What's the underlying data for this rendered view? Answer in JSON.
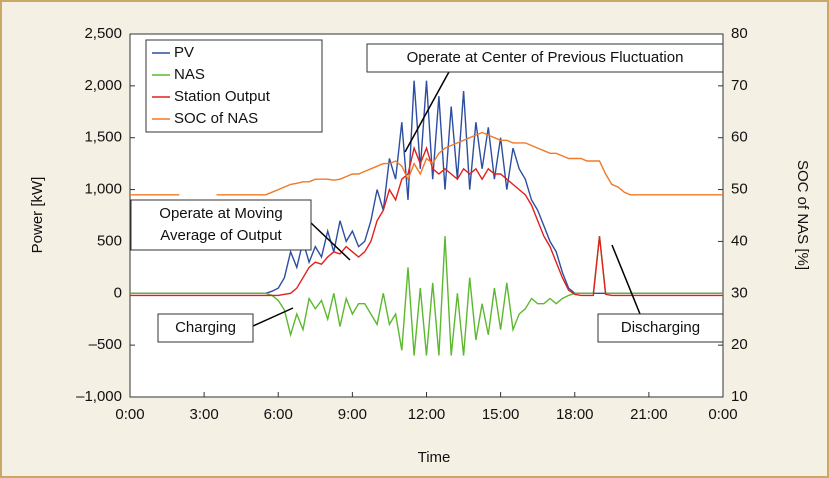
{
  "chart_data": {
    "type": "line",
    "xlabel": "Time",
    "ylabel": "Power [kW]",
    "y2label": "SOC of NAS [%]",
    "xlim": [
      0,
      24
    ],
    "xticks": [
      {
        "value": 0,
        "label": "0:00"
      },
      {
        "value": 3,
        "label": "3:00"
      },
      {
        "value": 6,
        "label": "6:00"
      },
      {
        "value": 9,
        "label": "9:00"
      },
      {
        "value": 12,
        "label": "12:00"
      },
      {
        "value": 15,
        "label": "15:00"
      },
      {
        "value": 18,
        "label": "18:00"
      },
      {
        "value": 21,
        "label": "21:00"
      },
      {
        "value": 24,
        "label": "0:00"
      }
    ],
    "ylim": [
      -1000,
      2500
    ],
    "yticks": [
      {
        "value": -1000,
        "label": "–1,000"
      },
      {
        "value": -500,
        "label": "–500"
      },
      0,
      500,
      {
        "value": 1000,
        "label": "1,000"
      },
      {
        "value": 1500,
        "label": "1,500"
      },
      {
        "value": 2000,
        "label": "2,000"
      },
      {
        "value": 2500,
        "label": "2,500"
      }
    ],
    "y2lim": [
      10,
      80
    ],
    "y2ticks": [
      10,
      20,
      30,
      40,
      50,
      60,
      70,
      80
    ],
    "grid": false,
    "legend": "upper left",
    "x": [
      0,
      0.25,
      0.5,
      0.75,
      1,
      1.25,
      1.5,
      1.75,
      2,
      2.25,
      2.5,
      2.75,
      3,
      3.25,
      3.5,
      3.75,
      4,
      4.25,
      4.5,
      4.75,
      5,
      5.25,
      5.5,
      5.75,
      6,
      6.25,
      6.5,
      6.75,
      7,
      7.25,
      7.5,
      7.75,
      8,
      8.25,
      8.5,
      8.75,
      9,
      9.25,
      9.5,
      9.75,
      10,
      10.25,
      10.5,
      10.75,
      11,
      11.25,
      11.5,
      11.75,
      12,
      12.25,
      12.5,
      12.75,
      13,
      13.25,
      13.5,
      13.75,
      14,
      14.25,
      14.5,
      14.75,
      15,
      15.25,
      15.5,
      15.75,
      16,
      16.25,
      16.5,
      16.75,
      17,
      17.25,
      17.5,
      17.75,
      18,
      18.25,
      18.5,
      18.75,
      19,
      19.25,
      19.5,
      19.75,
      20,
      20.25,
      20.5,
      20.75,
      21,
      21.25,
      21.5,
      21.75,
      22,
      22.25,
      22.5,
      22.75,
      23,
      23.25,
      23.5,
      23.75,
      24
    ],
    "series": [
      {
        "name": "PV",
        "color": "#2d4ea0",
        "values": [
          0,
          0,
          0,
          0,
          0,
          0,
          0,
          0,
          0,
          0,
          0,
          0,
          0,
          0,
          0,
          0,
          0,
          0,
          0,
          0,
          0,
          0,
          0,
          20,
          50,
          150,
          400,
          250,
          500,
          300,
          450,
          350,
          600,
          400,
          700,
          500,
          600,
          450,
          500,
          700,
          1000,
          800,
          1300,
          1100,
          1650,
          900,
          2050,
          1200,
          2050,
          1100,
          1900,
          1000,
          1800,
          1100,
          1950,
          1000,
          1650,
          1200,
          1600,
          1100,
          1500,
          1000,
          1400,
          1200,
          1100,
          900,
          800,
          650,
          500,
          400,
          200,
          50,
          0,
          0,
          0,
          0,
          0,
          0,
          0,
          0,
          0,
          0,
          0,
          0,
          0,
          0,
          0,
          0,
          0,
          0,
          0,
          0,
          0,
          0,
          0,
          0,
          0
        ]
      },
      {
        "name": "NAS",
        "color": "#5cb82e",
        "values": [
          0,
          0,
          0,
          0,
          0,
          0,
          0,
          0,
          0,
          0,
          0,
          0,
          0,
          0,
          0,
          0,
          0,
          0,
          0,
          0,
          0,
          0,
          0,
          -20,
          -70,
          -160,
          -400,
          -200,
          -350,
          -50,
          -150,
          -70,
          -250,
          0,
          -320,
          -50,
          -200,
          -100,
          -100,
          -200,
          -300,
          0,
          -300,
          -200,
          -550,
          250,
          -600,
          50,
          -600,
          100,
          -600,
          550,
          -600,
          0,
          -600,
          150,
          -450,
          -100,
          -400,
          50,
          -350,
          100,
          -350,
          -200,
          -150,
          -50,
          -100,
          -100,
          -50,
          -100,
          -50,
          -20,
          0,
          0,
          0,
          0,
          550,
          0,
          0,
          0,
          0,
          0,
          0,
          0,
          0,
          0,
          0,
          0,
          0,
          0,
          0,
          0,
          0,
          0,
          0,
          0,
          0
        ]
      },
      {
        "name": "Station Output",
        "color": "#e0201b",
        "values": [
          -20,
          -20,
          -20,
          -20,
          -20,
          -20,
          -20,
          -20,
          -20,
          -20,
          -20,
          -20,
          -20,
          -20,
          -20,
          -20,
          -20,
          -20,
          -20,
          -20,
          -20,
          -20,
          -20,
          -20,
          -20,
          -10,
          0,
          50,
          150,
          250,
          300,
          280,
          350,
          400,
          380,
          450,
          400,
          350,
          400,
          500,
          700,
          800,
          1000,
          900,
          1100,
          1150,
          1400,
          1250,
          1400,
          1200,
          1150,
          1200,
          1150,
          1100,
          1200,
          1150,
          1200,
          1100,
          1200,
          1150,
          1150,
          1100,
          1050,
          1000,
          950,
          850,
          700,
          550,
          450,
          300,
          150,
          30,
          -10,
          -20,
          -20,
          -20,
          550,
          -10,
          -20,
          -20,
          -20,
          -20,
          -20,
          -20,
          -20,
          -20,
          -20,
          -20,
          -20,
          -20,
          -20,
          -20,
          -20,
          -20,
          -20,
          -20,
          -20
        ]
      },
      {
        "name": "SOC of NAS",
        "color": "#f07a28",
        "axis": "y2",
        "values": [
          49,
          49,
          49,
          49,
          49,
          49,
          49,
          49,
          49,
          null,
          null,
          null,
          null,
          null,
          49,
          49,
          49,
          49,
          49,
          49,
          49,
          49,
          49,
          49.5,
          50,
          50.5,
          51,
          51.2,
          51.5,
          51.5,
          52,
          52,
          52,
          51.8,
          52,
          52.5,
          53,
          53,
          53.5,
          54,
          54.5,
          55,
          55,
          55.5,
          54.5,
          52,
          55,
          53,
          56,
          55,
          57,
          58,
          58.5,
          59,
          59.5,
          60,
          60.5,
          61,
          60.5,
          60,
          59.5,
          59.5,
          59,
          59,
          59,
          58.5,
          58,
          57.5,
          57,
          57,
          56.5,
          56,
          56,
          56,
          55.5,
          55.5,
          55.5,
          53,
          51,
          50.5,
          49.5,
          49,
          49,
          49,
          49,
          49,
          49,
          49,
          49,
          49,
          49,
          49,
          49,
          49,
          49,
          49,
          49
        ]
      }
    ],
    "annotations": [
      {
        "lines": [
          "Operate at Center of Previous Fluctuation"
        ]
      },
      {
        "lines": [
          "Operate at Moving",
          "Average of Output"
        ]
      },
      {
        "lines": [
          "Charging"
        ]
      },
      {
        "lines": [
          "Discharging"
        ]
      }
    ]
  }
}
